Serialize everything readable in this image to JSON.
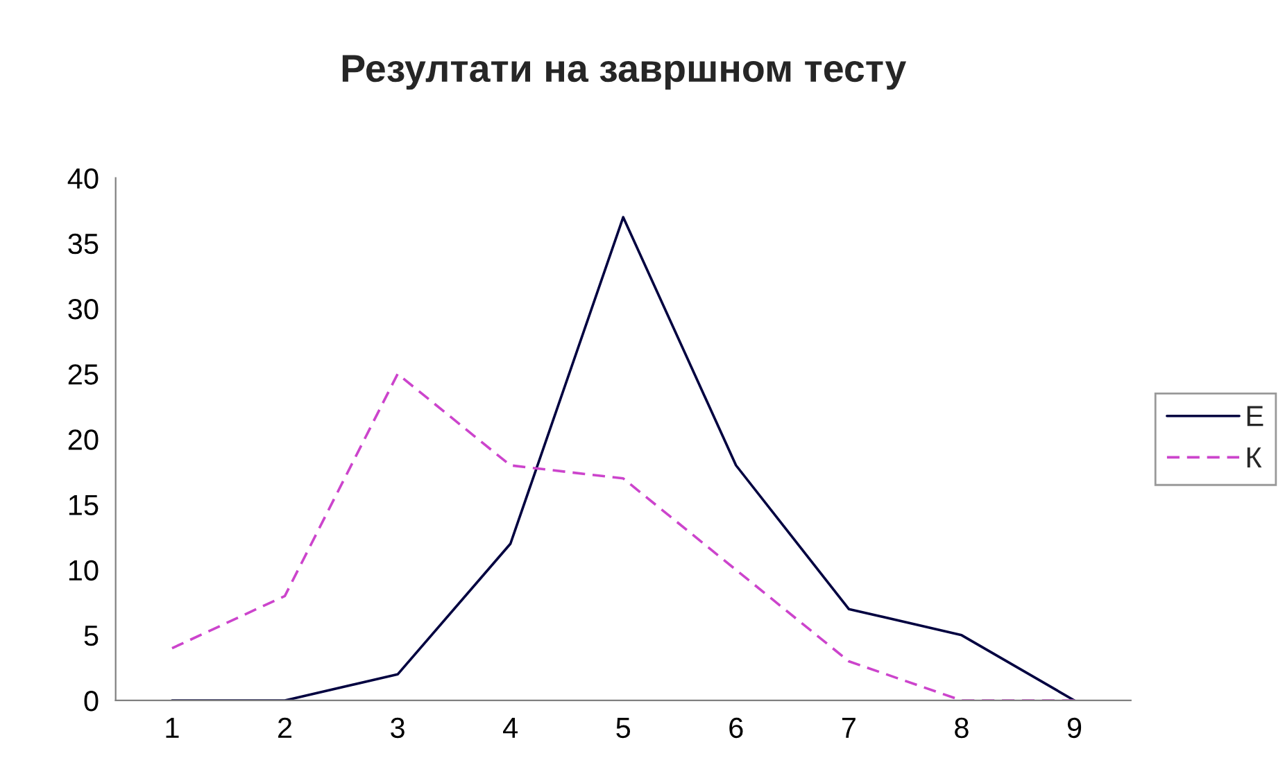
{
  "chart_data": {
    "type": "line",
    "title": "Резултати на завршном тесту",
    "categories": [
      "1",
      "2",
      "3",
      "4",
      "5",
      "6",
      "7",
      "8",
      "9"
    ],
    "series": [
      {
        "name": "Е",
        "color": "#000040",
        "line_style": "solid",
        "values": [
          0,
          0,
          2,
          12,
          37,
          18,
          7,
          5,
          0
        ]
      },
      {
        "name": "К",
        "color": "#cc44cc",
        "line_style": "dashed",
        "values": [
          4,
          8,
          25,
          18,
          17,
          10,
          3,
          0,
          0
        ]
      }
    ],
    "ylim": [
      0,
      40
    ],
    "yticks": [
      0,
      5,
      10,
      15,
      20,
      25,
      30,
      35,
      40
    ],
    "grid": false,
    "legend": "right",
    "marker": "none"
  }
}
